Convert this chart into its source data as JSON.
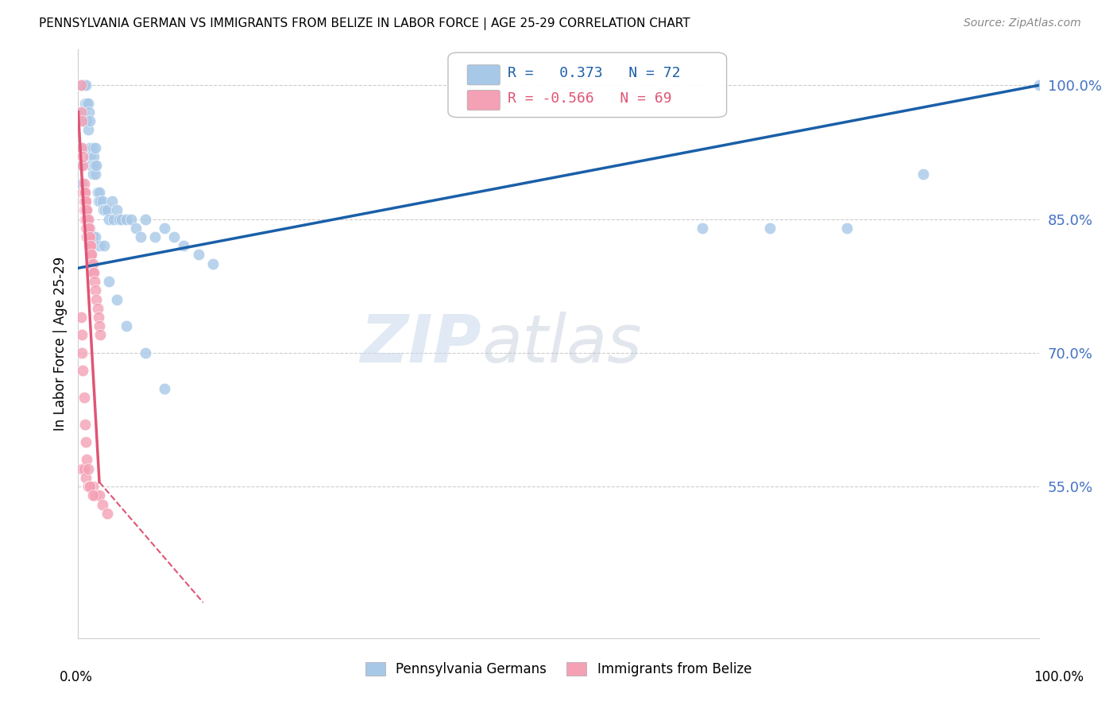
{
  "title": "PENNSYLVANIA GERMAN VS IMMIGRANTS FROM BELIZE IN LABOR FORCE | AGE 25-29 CORRELATION CHART",
  "source": "Source: ZipAtlas.com",
  "ylabel": "In Labor Force | Age 25-29",
  "ytick_labels": [
    "55.0%",
    "70.0%",
    "85.0%",
    "100.0%"
  ],
  "ytick_values": [
    0.55,
    0.7,
    0.85,
    1.0
  ],
  "xlim": [
    0.0,
    1.0
  ],
  "ylim": [
    0.38,
    1.04
  ],
  "legend_label_blue": "Pennsylvania Germans",
  "legend_label_pink": "Immigrants from Belize",
  "r_blue": 0.373,
  "n_blue": 72,
  "r_pink": -0.566,
  "n_pink": 69,
  "blue_color": "#a8c8e8",
  "pink_color": "#f4a0b5",
  "blue_line_color": "#1a5fa8",
  "pink_line_color": "#e05575",
  "watermark_zip": "ZIP",
  "watermark_atlas": "atlas",
  "blue_trend_x0": 0.0,
  "blue_trend_y0": 0.795,
  "blue_trend_x1": 1.0,
  "blue_trend_y1": 1.0,
  "pink_trend_x0": 0.0,
  "pink_trend_y0": 0.97,
  "pink_trend_x1solid": 0.022,
  "pink_trend_y1solid": 0.555,
  "pink_trend_x1dash": 0.13,
  "pink_trend_y1dash": 0.42,
  "blue_scatter_x": [
    0.001,
    0.002,
    0.003,
    0.004,
    0.005,
    0.005,
    0.006,
    0.007,
    0.007,
    0.008,
    0.009,
    0.009,
    0.01,
    0.01,
    0.011,
    0.012,
    0.012,
    0.013,
    0.014,
    0.015,
    0.015,
    0.016,
    0.017,
    0.018,
    0.018,
    0.019,
    0.02,
    0.021,
    0.022,
    0.023,
    0.025,
    0.026,
    0.028,
    0.03,
    0.032,
    0.035,
    0.037,
    0.04,
    0.043,
    0.045,
    0.05,
    0.055,
    0.06,
    0.065,
    0.07,
    0.08,
    0.09,
    0.1,
    0.11,
    0.125,
    0.14,
    0.002,
    0.003,
    0.004,
    0.006,
    0.008,
    0.01,
    0.012,
    0.015,
    0.018,
    0.022,
    0.027,
    0.032,
    0.04,
    0.05,
    0.07,
    0.09,
    0.65,
    0.72,
    0.8,
    0.88,
    1.0
  ],
  "blue_scatter_y": [
    1.0,
    1.0,
    1.0,
    1.0,
    1.0,
    0.97,
    1.0,
    0.98,
    0.96,
    1.0,
    0.96,
    0.98,
    0.95,
    0.98,
    0.97,
    0.93,
    0.96,
    0.92,
    0.91,
    0.9,
    0.93,
    0.92,
    0.91,
    0.9,
    0.93,
    0.91,
    0.88,
    0.87,
    0.88,
    0.87,
    0.87,
    0.86,
    0.86,
    0.86,
    0.85,
    0.87,
    0.85,
    0.86,
    0.85,
    0.85,
    0.85,
    0.85,
    0.84,
    0.83,
    0.85,
    0.83,
    0.84,
    0.83,
    0.82,
    0.81,
    0.8,
    0.93,
    0.91,
    0.89,
    0.87,
    0.86,
    0.85,
    0.84,
    0.83,
    0.83,
    0.82,
    0.82,
    0.78,
    0.76,
    0.73,
    0.7,
    0.66,
    0.84,
    0.84,
    0.84,
    0.9,
    1.0
  ],
  "pink_scatter_x": [
    0.003,
    0.003,
    0.004,
    0.004,
    0.005,
    0.005,
    0.005,
    0.006,
    0.006,
    0.006,
    0.006,
    0.007,
    0.007,
    0.007,
    0.007,
    0.008,
    0.008,
    0.008,
    0.008,
    0.009,
    0.009,
    0.009,
    0.009,
    0.009,
    0.01,
    0.01,
    0.01,
    0.01,
    0.01,
    0.011,
    0.011,
    0.011,
    0.012,
    0.012,
    0.013,
    0.013,
    0.014,
    0.014,
    0.015,
    0.015,
    0.016,
    0.017,
    0.018,
    0.019,
    0.02,
    0.021,
    0.022,
    0.023,
    0.004,
    0.006,
    0.008,
    0.01,
    0.012,
    0.015,
    0.018,
    0.022,
    0.025,
    0.03,
    0.003,
    0.004,
    0.004,
    0.005,
    0.006,
    0.007,
    0.008,
    0.009,
    0.01,
    0.012,
    0.015
  ],
  "pink_scatter_y": [
    1.0,
    0.97,
    0.96,
    0.93,
    0.91,
    0.88,
    0.92,
    0.89,
    0.87,
    0.86,
    0.88,
    0.87,
    0.86,
    0.85,
    0.88,
    0.86,
    0.85,
    0.84,
    0.87,
    0.84,
    0.83,
    0.85,
    0.86,
    0.84,
    0.83,
    0.84,
    0.85,
    0.83,
    0.84,
    0.82,
    0.83,
    0.84,
    0.82,
    0.83,
    0.81,
    0.82,
    0.81,
    0.8,
    0.8,
    0.79,
    0.79,
    0.78,
    0.77,
    0.76,
    0.75,
    0.74,
    0.73,
    0.72,
    0.57,
    0.57,
    0.56,
    0.55,
    0.55,
    0.55,
    0.54,
    0.54,
    0.53,
    0.52,
    0.74,
    0.72,
    0.7,
    0.68,
    0.65,
    0.62,
    0.6,
    0.58,
    0.57,
    0.55,
    0.54
  ]
}
